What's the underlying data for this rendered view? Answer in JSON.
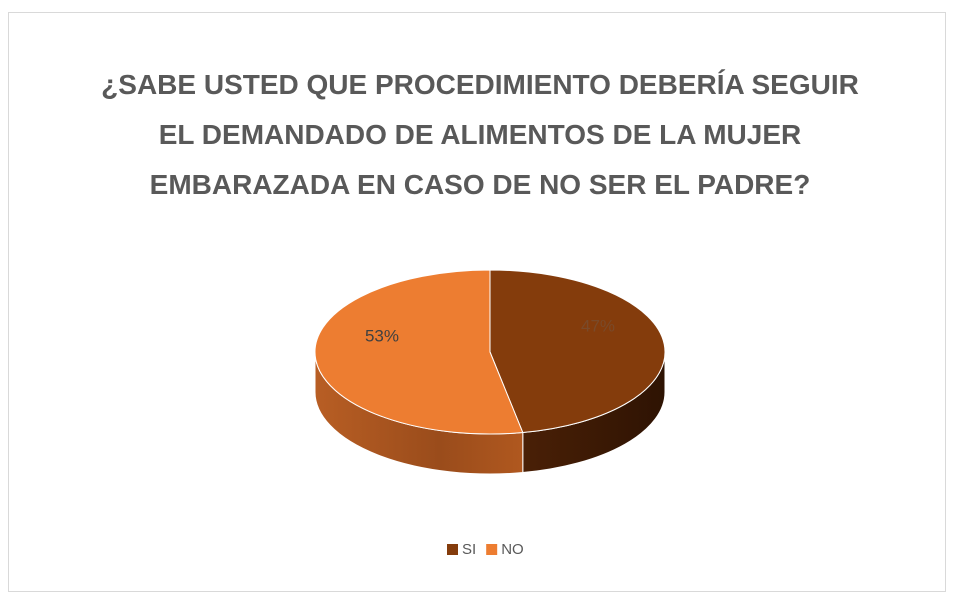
{
  "chart_data": {
    "type": "pie",
    "title": "¿SABE USTED QUE PROCEDIMIENTO DEBERÍA SEGUIR EL DEMANDADO DE ALIMENTOS DE LA MUJER EMBARAZADA EN CASO DE NO SER EL PADRE?",
    "categories": [
      "SI",
      "NO"
    ],
    "values": [
      47,
      53
    ],
    "value_labels": [
      "47%",
      "53%"
    ],
    "colors": [
      "#843c0c",
      "#ed7d31"
    ],
    "legend": "bottom"
  }
}
